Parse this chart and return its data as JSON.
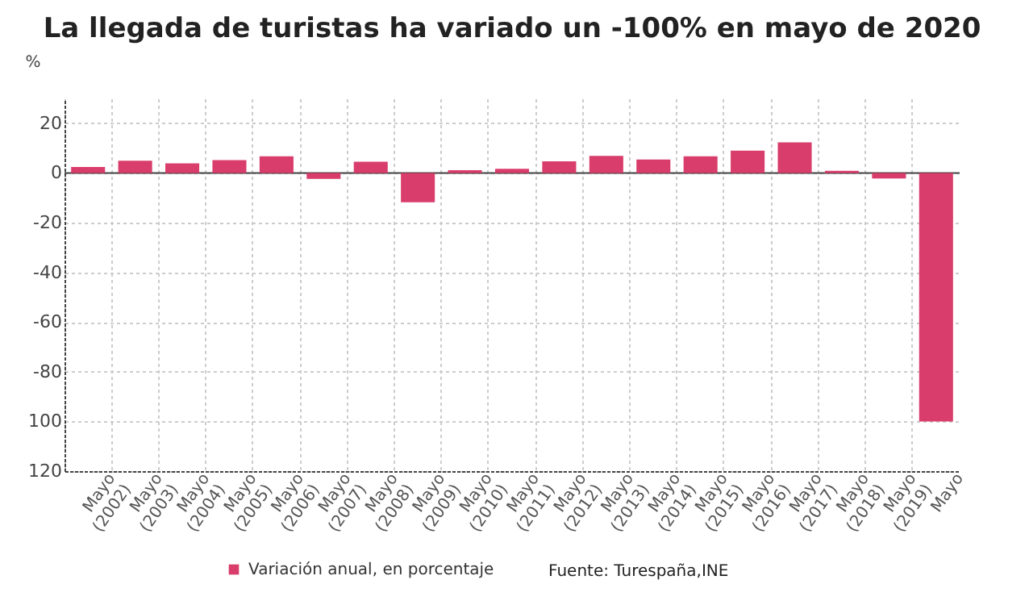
{
  "chart_data": {
    "type": "bar",
    "title": "La llegada de turistas ha variado un -100% en mayo de 2020",
    "ylabel": "%",
    "categories": [
      "Mayo (2002)",
      "Mayo (2003)",
      "Mayo (2004)",
      "Mayo (2005)",
      "Mayo (2006)",
      "Mayo (2007)",
      "Mayo (2008)",
      "Mayo (2009)",
      "Mayo (2010)",
      "Mayo (2011)",
      "Mayo (2012)",
      "Mayo (2013)",
      "Mayo (2014)",
      "Mayo (2015)",
      "Mayo (2016)",
      "Mayo (2017)",
      "Mayo (2018)",
      "Mayo (2019)",
      "Mayo"
    ],
    "series": [
      {
        "name": "Variación anual, en porcentaje",
        "color": "#d93d6b",
        "values": [
          2.4,
          4.9,
          3.9,
          5.2,
          6.7,
          -2.4,
          4.5,
          -11.8,
          1.1,
          1.7,
          4.7,
          6.9,
          5.4,
          6.7,
          9.0,
          12.3,
          0.9,
          -2.2,
          -100
        ]
      }
    ],
    "ylim": [
      -120,
      30
    ],
    "yticks": [
      {
        "value": -120,
        "label": "120"
      },
      {
        "value": -100,
        "label": "100"
      },
      -80,
      -60,
      -40,
      -20,
      0,
      20
    ],
    "ref_lines": [
      {
        "axis": "y",
        "value": 0,
        "color": "#444444"
      }
    ],
    "grid": true,
    "legend": "bottom",
    "annotations": [
      "Fuente: Turespaña,INE"
    ]
  }
}
